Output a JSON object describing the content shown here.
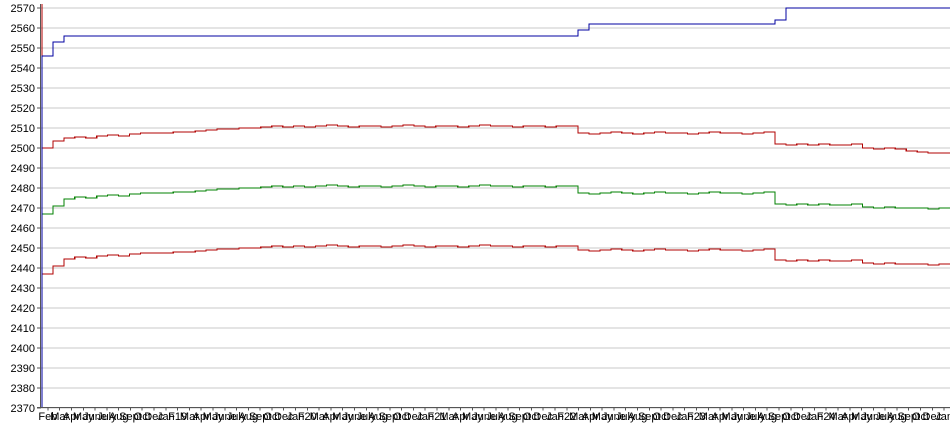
{
  "chart_data": {
    "type": "line",
    "title": "",
    "xlabel": "",
    "ylabel": "",
    "legend": "none",
    "grid": "horizontal",
    "ylim": [
      2370,
      2570
    ],
    "y_ticks": [
      2370,
      2380,
      2390,
      2400,
      2410,
      2420,
      2430,
      2440,
      2450,
      2460,
      2470,
      2480,
      2490,
      2500,
      2510,
      2520,
      2530,
      2540,
      2550,
      2560,
      2570
    ],
    "x_labels": [
      "Feb",
      "Mar",
      "Apr",
      "May",
      "June",
      "July",
      "Aug",
      "Sept",
      "Oct",
      "Dec",
      "Jan",
      "F19",
      "Mar",
      "Apr",
      "May",
      "June",
      "July",
      "Aug",
      "Sept",
      "Oct",
      "Dec",
      "Jan",
      "F20",
      "Mar",
      "Apr",
      "May",
      "June",
      "July",
      "Aug",
      "Sept",
      "Oct",
      "Dec",
      "Jan",
      "F21",
      "Mar",
      "Apr",
      "May",
      "June",
      "July",
      "Aug",
      "Sept",
      "Oct",
      "Dec",
      "Jan",
      "F22",
      "Mar",
      "Apr",
      "May",
      "June",
      "July",
      "Aug",
      "Sept",
      "Oct",
      "Dec",
      "Jan",
      "F23",
      "Mar",
      "Apr",
      "May",
      "June",
      "July",
      "Aug",
      "Sept",
      "Oct",
      "Dec",
      "Jan",
      "F24",
      "Mar",
      "Apr",
      "May",
      "June",
      "July",
      "Aug",
      "Sept",
      "Oct",
      "Dec",
      "Jan"
    ],
    "colors": {
      "navy": "#0000A0",
      "dark_red": "#B00000",
      "green": "#008000",
      "gridline": "#C9C9C9",
      "axis": "#555555",
      "background": "#FFFFFF"
    },
    "series": [
      {
        "name": "upper-dark-red-line",
        "color": "#B00000",
        "values": [
          2370,
          2500,
          2503.5,
          2505,
          2505.5,
          2505,
          2506,
          2506.5,
          2506,
          2507,
          2507.5,
          2507.5,
          2507.5,
          2508,
          2508,
          2508.5,
          2509,
          2509.5,
          2509.5,
          2510,
          2510,
          2510.5,
          2511,
          2510.5,
          2511,
          2510.5,
          2511,
          2511.5,
          2511,
          2510.5,
          2511,
          2511,
          2510.5,
          2511,
          2511.5,
          2511,
          2510.5,
          2511,
          2511,
          2510.5,
          2511,
          2511.5,
          2511,
          2511,
          2510.5,
          2511,
          2511,
          2510.5,
          2511,
          2511,
          2507.5,
          2507,
          2507.5,
          2508,
          2507.5,
          2507,
          2507.5,
          2508,
          2507.5,
          2507.5,
          2507,
          2507.5,
          2508,
          2507.5,
          2507.5,
          2507,
          2507.5,
          2508,
          2502,
          2501.5,
          2502,
          2501.5,
          2502,
          2501.5,
          2501.5,
          2502,
          2500,
          2499.5,
          2500,
          2499.5,
          2498.5,
          2498,
          2497.5,
          2497.5
        ]
      },
      {
        "name": "green-line",
        "color": "#008000",
        "values": [
          2495,
          2467,
          2471,
          2474.5,
          2475.5,
          2475,
          2476,
          2476.5,
          2476,
          2477,
          2477.5,
          2477.5,
          2477.5,
          2478,
          2478,
          2478.5,
          2479,
          2479.5,
          2479.5,
          2480,
          2480,
          2480.5,
          2481,
          2480.5,
          2481,
          2480.5,
          2481,
          2481.5,
          2481,
          2480.5,
          2481,
          2481,
          2480.5,
          2481,
          2481.5,
          2481,
          2480.5,
          2481,
          2481,
          2480.5,
          2481,
          2481.5,
          2481,
          2481,
          2480.5,
          2481,
          2481,
          2480.5,
          2481,
          2481,
          2477.5,
          2477,
          2477.5,
          2478,
          2477.5,
          2477,
          2477.5,
          2478,
          2477.5,
          2477.5,
          2477,
          2477.5,
          2478,
          2477.5,
          2477.5,
          2477,
          2477.5,
          2478,
          2472,
          2471.5,
          2472,
          2471.5,
          2472,
          2471.5,
          2471.5,
          2472,
          2470.5,
          2470,
          2470.5,
          2470,
          2470,
          2470,
          2469.5,
          2470
        ]
      },
      {
        "name": "lower-dark-red-line",
        "color": "#B00000",
        "values": [
          2572,
          2437,
          2441,
          2444.5,
          2445.5,
          2445,
          2446,
          2446.5,
          2446,
          2447,
          2447.5,
          2447.5,
          2447.5,
          2448,
          2448,
          2448.5,
          2449,
          2449.5,
          2449.5,
          2450,
          2450,
          2450.5,
          2451,
          2450.5,
          2451,
          2450.5,
          2451,
          2451.5,
          2451,
          2450.5,
          2451,
          2451,
          2450.5,
          2451,
          2451.5,
          2451,
          2450.5,
          2451,
          2451,
          2450.5,
          2451,
          2451.5,
          2451,
          2451,
          2450.5,
          2451,
          2451,
          2450.5,
          2451,
          2451,
          2449,
          2448.5,
          2449,
          2449.5,
          2449,
          2448.5,
          2449,
          2449.5,
          2449,
          2449,
          2448.5,
          2449,
          2449.5,
          2449,
          2449,
          2448.5,
          2449,
          2449.5,
          2444,
          2443.5,
          2444,
          2443.5,
          2444,
          2443.5,
          2443.5,
          2444,
          2442.5,
          2442,
          2442.5,
          2442,
          2442,
          2442,
          2441.5,
          2442
        ]
      },
      {
        "name": "navy-step-line",
        "color": "#0000A0",
        "values": [
          2370,
          2546,
          2553,
          2556,
          2556,
          2556,
          2556,
          2556,
          2556,
          2556,
          2556,
          2556,
          2556,
          2556,
          2556,
          2556,
          2556,
          2556,
          2556,
          2556,
          2556,
          2556,
          2556,
          2556,
          2556,
          2556,
          2556,
          2556,
          2556,
          2556,
          2556,
          2556,
          2556,
          2556,
          2556,
          2556,
          2556,
          2556,
          2556,
          2556,
          2556,
          2556,
          2556,
          2556,
          2556,
          2556,
          2556,
          2556,
          2556,
          2556,
          2559,
          2562,
          2562,
          2562,
          2562,
          2562,
          2562,
          2562,
          2562,
          2562,
          2562,
          2562,
          2562,
          2562,
          2562,
          2562,
          2562,
          2562,
          2564,
          2570,
          2570,
          2570,
          2570,
          2570,
          2570,
          2570,
          2570,
          2570,
          2570,
          2570,
          2570,
          2570,
          2570,
          2570
        ]
      }
    ]
  }
}
